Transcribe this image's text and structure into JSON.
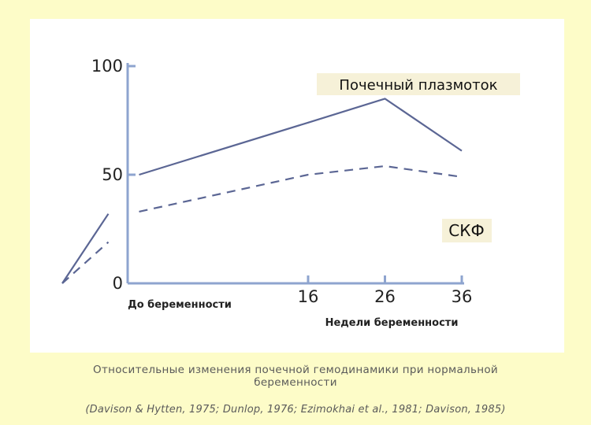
{
  "caption": {
    "line1": "Относительные изменения почечной гемодинамики при нормальной",
    "line2": "беременности",
    "refs": "(Davison & Hytten, 1975; Dunlop, 1976; Ezimokhai et al., 1981; Davison, 1985)"
  },
  "chart_data": {
    "type": "line",
    "ylim": [
      0,
      100
    ],
    "yticks": [
      "0",
      "50",
      "100"
    ],
    "xticks": [
      "16",
      "26",
      "36"
    ],
    "xlabel_pre": "До беременности",
    "xlabel": "Недели беременности",
    "series": [
      {
        "name": "Почечный плазмоток",
        "style": "solid",
        "color": "#5b6694",
        "segments": [
          [
            [
              -16,
              0
            ],
            [
              -10,
              32
            ]
          ],
          [
            [
              -6,
              50
            ],
            [
              16,
              74
            ],
            [
              26,
              85
            ],
            [
              36,
              61
            ]
          ]
        ]
      },
      {
        "name": "СКФ",
        "style": "dashed",
        "color": "#5b6694",
        "segments": [
          [
            [
              -16,
              0
            ],
            [
              -10,
              19
            ]
          ],
          [
            [
              -6,
              33
            ],
            [
              16,
              50
            ],
            [
              26,
              54
            ],
            [
              36,
              49
            ]
          ]
        ]
      }
    ]
  },
  "colors": {
    "page_bg": "#fdfcc8",
    "axis": "#8ea4cf",
    "series": "#5b6694",
    "label_box": "#f6f1d8"
  }
}
